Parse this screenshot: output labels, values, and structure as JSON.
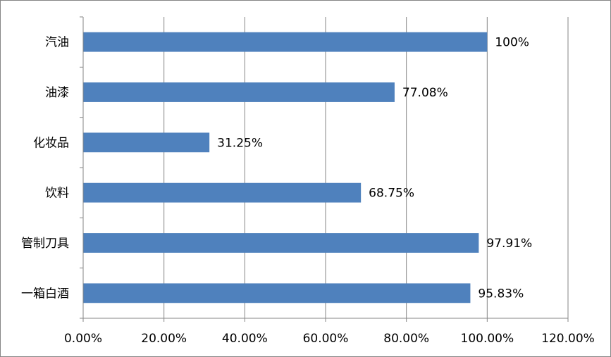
{
  "chart_data": {
    "type": "bar",
    "orientation": "horizontal",
    "categories": [
      "汽油",
      "油漆",
      "化妆品",
      "饮料",
      "管制刀具",
      "一箱白酒"
    ],
    "values": [
      100,
      77.08,
      31.25,
      68.75,
      97.91,
      95.83
    ],
    "data_labels": [
      "100%",
      "77.08%",
      "31.25%",
      "68.75%",
      "97.91%",
      "95.83%"
    ],
    "x_ticks": [
      "0.00%",
      "20.00%",
      "40.00%",
      "60.00%",
      "80.00%",
      "100.00%",
      "120.00%"
    ],
    "xlim": [
      0,
      120
    ],
    "xlabel": "",
    "ylabel": "",
    "title": "",
    "grid": "vertical",
    "legend": "none",
    "bar_color": "#4F81BD",
    "grid_color": "#868686"
  }
}
